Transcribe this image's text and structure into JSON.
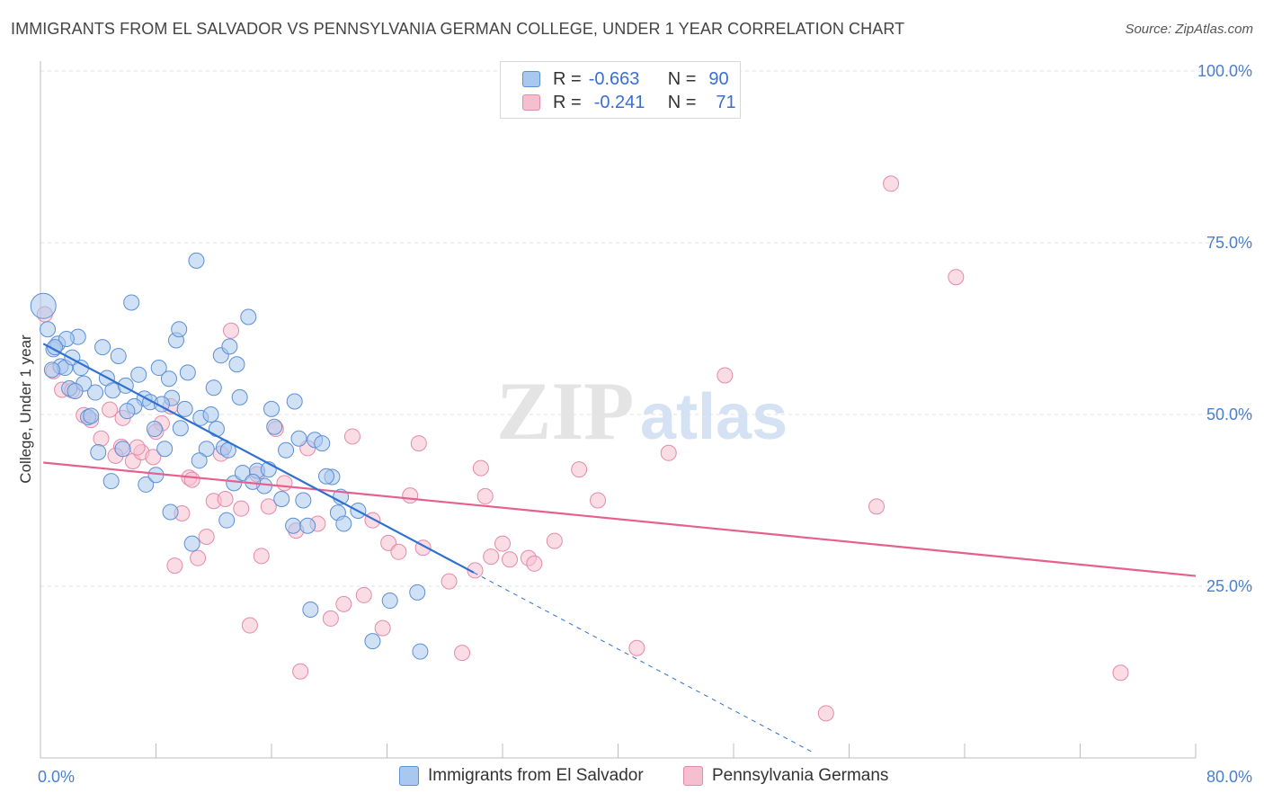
{
  "title": "IMMIGRANTS FROM EL SALVADOR VS PENNSYLVANIA GERMAN COLLEGE, UNDER 1 YEAR CORRELATION CHART",
  "source": "Source: ZipAtlas.com",
  "watermark": {
    "zip": "ZIP",
    "atlas": "atlas"
  },
  "legend": {
    "rows": [
      {
        "r_label": "R =",
        "r_value": "-0.663",
        "n_label": "N =",
        "n_value": "90"
      },
      {
        "r_label": "R =",
        "r_value": "-0.241",
        "n_label": "N =",
        "n_value": "71"
      }
    ]
  },
  "colors": {
    "blue_fill": "#a9c8ef",
    "blue_stroke": "#5b8fd6",
    "blue_line": "#2f6fd0",
    "pink_fill": "#f6bfd0",
    "pink_stroke": "#e58aa8",
    "pink_line": "#e5608e",
    "tick_text": "#4a7fd0",
    "grid": "#e2e2e2"
  },
  "chart_data": {
    "type": "scatter",
    "title": "IMMIGRANTS FROM EL SALVADOR VS PENNSYLVANIA GERMAN COLLEGE, UNDER 1 YEAR CORRELATION CHART",
    "xlabel": "",
    "ylabel": "College, Under 1 year",
    "xlim": [
      0,
      80
    ],
    "ylim": [
      0,
      100
    ],
    "x_tick_labels": [
      "0.0%",
      "80.0%"
    ],
    "y_tick_labels": [
      "100.0%",
      "75.0%",
      "50.0%",
      "25.0%"
    ],
    "y_tick_values": [
      100,
      75,
      50,
      25
    ],
    "grid": true,
    "legend_placement": "top-center",
    "series": [
      {
        "name": "Immigrants from El Salvador",
        "color": "blue",
        "trend": {
          "x": [
            0.2,
            30
          ],
          "y": [
            60.3,
            27.0
          ],
          "dashed_extension": {
            "x": [
              30,
              53.5
            ],
            "y": [
              27.0,
              0.8
            ]
          }
        },
        "points": [
          [
            0.2,
            65.8
          ],
          [
            0.5,
            62.4
          ],
          [
            0.9,
            59.5
          ],
          [
            1.2,
            60.3
          ],
          [
            1.4,
            57.0
          ],
          [
            1.7,
            56.8
          ],
          [
            2.2,
            58.3
          ],
          [
            2.0,
            53.8
          ],
          [
            2.6,
            61.3
          ],
          [
            2.8,
            56.8
          ],
          [
            3.0,
            54.5
          ],
          [
            3.3,
            49.6
          ],
          [
            3.8,
            53.2
          ],
          [
            4.3,
            59.8
          ],
          [
            4.6,
            55.3
          ],
          [
            5.0,
            53.5
          ],
          [
            5.4,
            58.5
          ],
          [
            5.9,
            54.2
          ],
          [
            6.3,
            66.3
          ],
          [
            6.8,
            55.8
          ],
          [
            7.2,
            52.3
          ],
          [
            7.6,
            51.8
          ],
          [
            8.2,
            56.8
          ],
          [
            8.9,
            55.2
          ],
          [
            9.4,
            60.8
          ],
          [
            9.1,
            52.4
          ],
          [
            9.6,
            62.4
          ],
          [
            10.2,
            56.1
          ],
          [
            10.8,
            72.4
          ],
          [
            11.1,
            49.5
          ],
          [
            11.5,
            45.0
          ],
          [
            12.0,
            53.9
          ],
          [
            12.5,
            58.6
          ],
          [
            13.1,
            59.9
          ],
          [
            13.6,
            57.3
          ],
          [
            13.8,
            52.5
          ],
          [
            14.4,
            64.2
          ],
          [
            16.2,
            48.2
          ],
          [
            17.0,
            44.8
          ],
          [
            17.6,
            51.9
          ],
          [
            18.2,
            37.5
          ],
          [
            19.0,
            46.3
          ],
          [
            19.5,
            45.8
          ],
          [
            20.2,
            40.9
          ],
          [
            20.6,
            35.7
          ],
          [
            18.7,
            21.6
          ],
          [
            21.0,
            34.1
          ],
          [
            23.0,
            17.0
          ],
          [
            24.2,
            22.9
          ],
          [
            26.1,
            24.1
          ],
          [
            26.3,
            15.5
          ],
          [
            1.8,
            61.0
          ],
          [
            4.0,
            44.5
          ],
          [
            4.9,
            40.3
          ],
          [
            5.7,
            45.0
          ],
          [
            6.5,
            51.2
          ],
          [
            7.3,
            39.8
          ],
          [
            8.0,
            41.2
          ],
          [
            8.6,
            45.0
          ],
          [
            9.0,
            35.8
          ],
          [
            10.5,
            31.2
          ],
          [
            11.0,
            43.3
          ],
          [
            12.2,
            47.9
          ],
          [
            12.7,
            45.2
          ],
          [
            13.4,
            40.0
          ],
          [
            14.0,
            41.5
          ],
          [
            15.0,
            41.8
          ],
          [
            15.5,
            39.6
          ],
          [
            16.7,
            37.7
          ],
          [
            17.5,
            33.8
          ],
          [
            12.9,
            34.6
          ],
          [
            10.0,
            50.8
          ],
          [
            9.7,
            48.0
          ],
          [
            8.4,
            51.5
          ],
          [
            7.9,
            47.9
          ],
          [
            6.0,
            50.5
          ],
          [
            3.5,
            49.8
          ],
          [
            2.4,
            53.4
          ],
          [
            1.0,
            59.8
          ],
          [
            0.8,
            56.5
          ],
          [
            11.8,
            50.0
          ],
          [
            13.0,
            44.8
          ],
          [
            14.7,
            40.2
          ],
          [
            15.8,
            42.0
          ],
          [
            16.0,
            50.8
          ],
          [
            17.9,
            46.5
          ],
          [
            18.5,
            33.8
          ],
          [
            19.8,
            41.0
          ],
          [
            20.8,
            38.0
          ],
          [
            22.0,
            36.0
          ]
        ]
      },
      {
        "name": "Pennsylvania Germans",
        "color": "pink",
        "trend": {
          "x": [
            0.2,
            80
          ],
          "y": [
            43.0,
            26.5
          ]
        },
        "points": [
          [
            0.3,
            64.6
          ],
          [
            0.9,
            56.3
          ],
          [
            1.5,
            53.6
          ],
          [
            2.2,
            53.5
          ],
          [
            3.0,
            49.9
          ],
          [
            3.5,
            49.2
          ],
          [
            4.2,
            46.5
          ],
          [
            4.8,
            50.7
          ],
          [
            5.6,
            45.3
          ],
          [
            5.7,
            49.5
          ],
          [
            6.4,
            43.2
          ],
          [
            7.0,
            44.5
          ],
          [
            7.8,
            43.8
          ],
          [
            8.4,
            48.7
          ],
          [
            9.0,
            51.2
          ],
          [
            9.3,
            28.0
          ],
          [
            9.8,
            35.6
          ],
          [
            10.3,
            40.8
          ],
          [
            10.9,
            29.1
          ],
          [
            11.5,
            32.2
          ],
          [
            12.0,
            37.4
          ],
          [
            12.5,
            44.3
          ],
          [
            13.2,
            62.2
          ],
          [
            13.9,
            36.3
          ],
          [
            14.5,
            19.3
          ],
          [
            15.3,
            29.4
          ],
          [
            15.8,
            36.6
          ],
          [
            16.3,
            47.9
          ],
          [
            16.9,
            40.0
          ],
          [
            17.7,
            33.1
          ],
          [
            18.0,
            12.6
          ],
          [
            18.5,
            45.1
          ],
          [
            19.2,
            34.1
          ],
          [
            20.1,
            20.3
          ],
          [
            21.0,
            22.4
          ],
          [
            21.6,
            46.8
          ],
          [
            22.4,
            23.7
          ],
          [
            23.0,
            34.6
          ],
          [
            23.7,
            18.9
          ],
          [
            24.1,
            31.3
          ],
          [
            24.8,
            30.0
          ],
          [
            25.6,
            38.2
          ],
          [
            26.2,
            45.8
          ],
          [
            26.5,
            30.6
          ],
          [
            28.3,
            25.7
          ],
          [
            29.2,
            15.3
          ],
          [
            30.1,
            27.3
          ],
          [
            30.5,
            42.2
          ],
          [
            30.8,
            38.1
          ],
          [
            31.2,
            29.3
          ],
          [
            32.0,
            31.2
          ],
          [
            32.5,
            28.9
          ],
          [
            33.8,
            29.1
          ],
          [
            34.2,
            28.3
          ],
          [
            35.6,
            31.6
          ],
          [
            37.3,
            42.0
          ],
          [
            38.6,
            37.5
          ],
          [
            41.3,
            16.0
          ],
          [
            43.5,
            44.4
          ],
          [
            47.4,
            55.7
          ],
          [
            54.4,
            6.5
          ],
          [
            57.9,
            36.6
          ],
          [
            58.9,
            83.6
          ],
          [
            63.4,
            70.0
          ],
          [
            74.8,
            12.4
          ],
          [
            5.2,
            44.0
          ],
          [
            6.7,
            45.2
          ],
          [
            8.0,
            47.5
          ],
          [
            10.5,
            40.5
          ],
          [
            12.8,
            37.7
          ],
          [
            15.0,
            41.3
          ]
        ]
      }
    ]
  },
  "bottom_legend": [
    {
      "label": "Immigrants from El Salvador",
      "color": "blue"
    },
    {
      "label": "Pennsylvania Germans",
      "color": "pink"
    }
  ]
}
